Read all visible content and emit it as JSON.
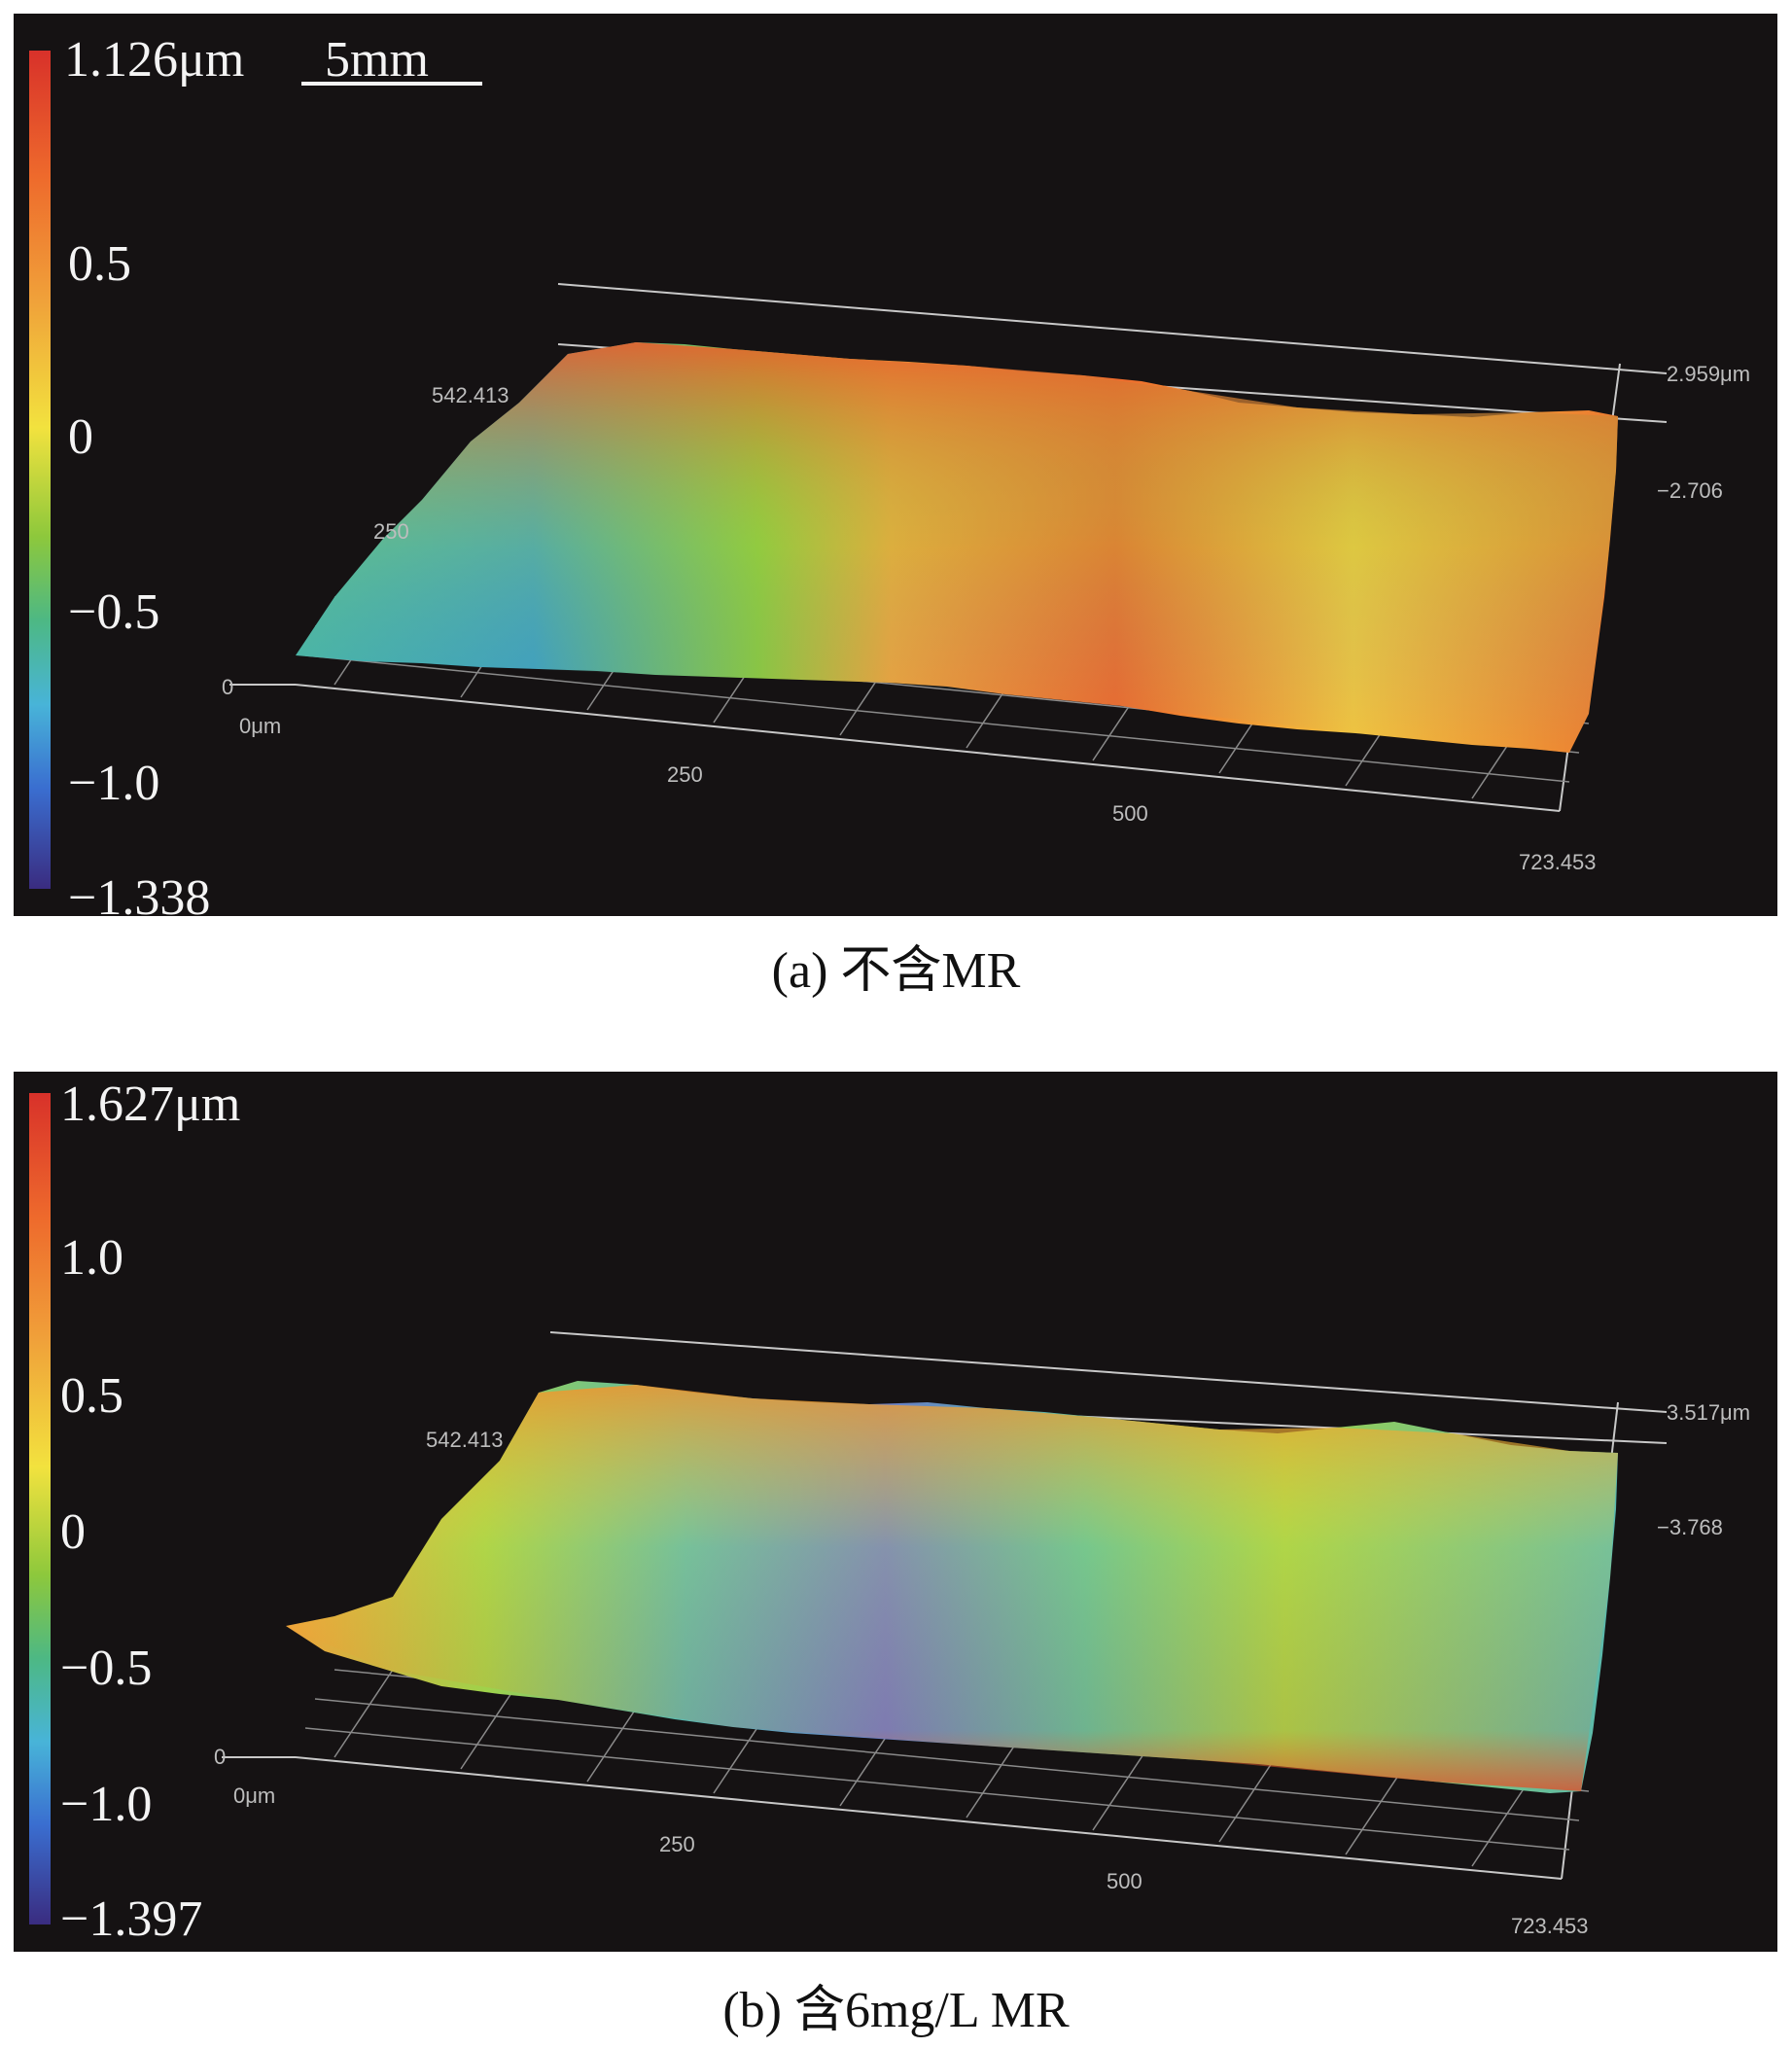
{
  "figure": {
    "panels": [
      {
        "caption": "(a) 不含MR",
        "max_label": "1.126μm",
        "scale_bar_label": "5mm",
        "colorbar_ticks": [
          "0.5",
          "0",
          "−0.5",
          "−1.0"
        ],
        "min_label": "−1.338",
        "axis": {
          "y_top": "542.413",
          "y_mid": "250",
          "origin_z": "0",
          "origin_x": "0μm",
          "x_250": "250",
          "x_500": "500",
          "x_end": "723.453",
          "z_top": "2.959μm",
          "z_bottom": "−2.706"
        }
      },
      {
        "caption": "(b) 含6mg/L MR",
        "max_label": "1.627μm",
        "colorbar_ticks": [
          "1.0",
          "0.5",
          "0",
          "−0.5",
          "−1.0"
        ],
        "min_label": "−1.397",
        "axis": {
          "y_top": "542.413",
          "origin_z": "0",
          "origin_x": "0μm",
          "x_250": "250",
          "x_500": "500",
          "x_end": "723.453",
          "z_top": "3.517μm",
          "z_bottom": "−3.768"
        }
      }
    ]
  }
}
